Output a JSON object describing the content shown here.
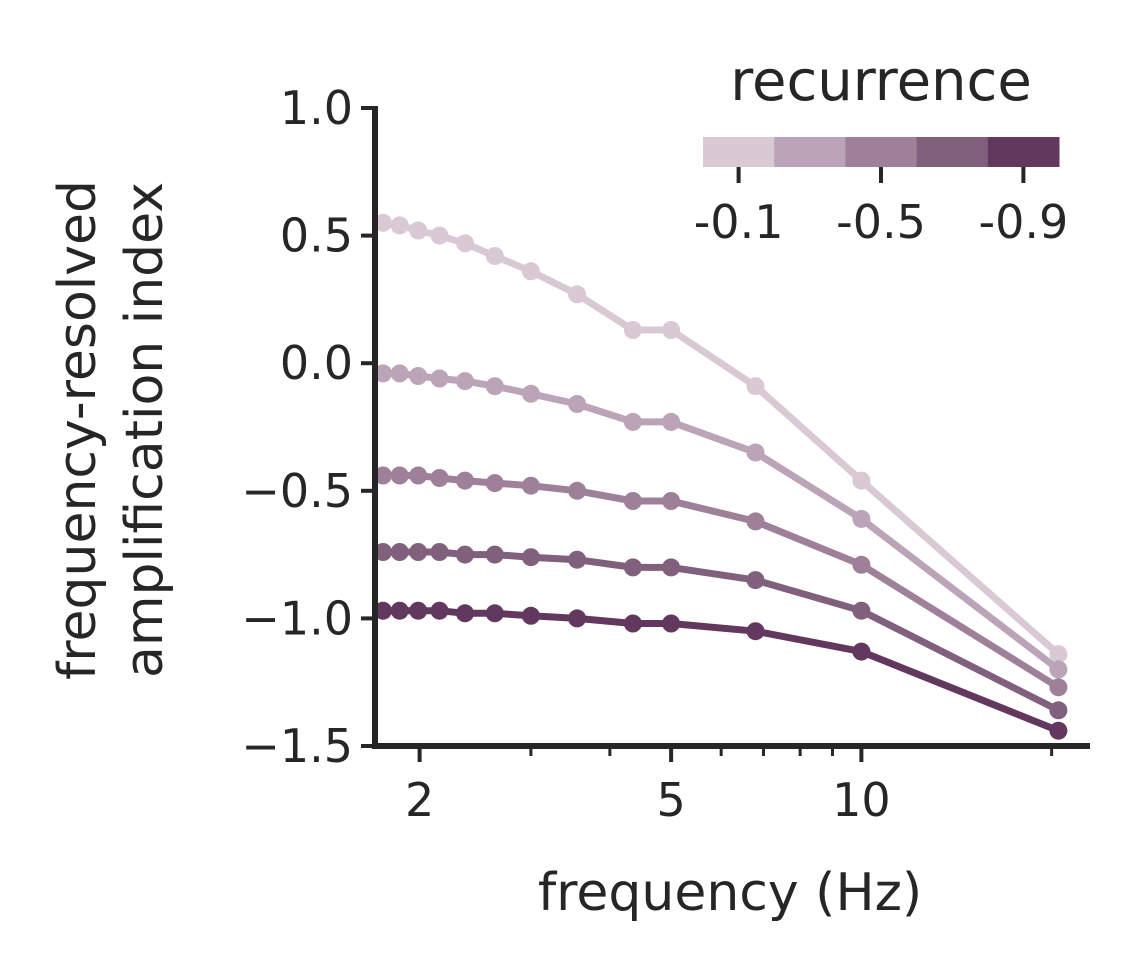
{
  "chart_data": {
    "type": "line",
    "title": "",
    "xlabel": "frequency (Hz)",
    "ylabel": [
      "frequency-resolved",
      "amplification index"
    ],
    "x_scale": "log",
    "xlim": [
      1.7,
      23
    ],
    "ylim": [
      -1.5,
      1.0
    ],
    "grid": false,
    "x_ticks": [
      2,
      5,
      10
    ],
    "x_tick_labels": [
      "2",
      "5",
      "10"
    ],
    "x_minor_ticks": [
      3,
      4,
      6,
      7,
      8,
      9,
      20
    ],
    "y_ticks": [
      1.0,
      0.5,
      0.0,
      -0.5,
      -1.0,
      -1.5
    ],
    "y_tick_labels": [
      "1.0",
      "0.5",
      "0.0",
      "−0.5",
      "−1.0",
      "−1.5"
    ],
    "x": [
      1.75,
      1.86,
      1.99,
      2.15,
      2.36,
      2.63,
      3.0,
      3.55,
      4.35,
      5.0,
      6.8,
      10.0,
      20.5
    ],
    "series": [
      {
        "color": "#d9c9d5",
        "values": [
          0.55,
          0.54,
          0.52,
          0.5,
          0.47,
          0.42,
          0.36,
          0.27,
          0.13,
          0.13,
          -0.09,
          -0.46,
          -1.14
        ]
      },
      {
        "color": "#bba4b8",
        "values": [
          -0.04,
          -0.04,
          -0.05,
          -0.06,
          -0.07,
          -0.09,
          -0.12,
          -0.16,
          -0.23,
          -0.23,
          -0.35,
          -0.61,
          -1.2
        ]
      },
      {
        "color": "#9e8199",
        "values": [
          -0.44,
          -0.44,
          -0.44,
          -0.45,
          -0.46,
          -0.47,
          -0.48,
          -0.5,
          -0.54,
          -0.54,
          -0.62,
          -0.79,
          -1.27
        ]
      },
      {
        "color": "#80607c",
        "values": [
          -0.74,
          -0.74,
          -0.74,
          -0.74,
          -0.75,
          -0.75,
          -0.76,
          -0.77,
          -0.8,
          -0.8,
          -0.85,
          -0.97,
          -1.36
        ]
      },
      {
        "color": "#63385e",
        "values": [
          -0.97,
          -0.97,
          -0.97,
          -0.97,
          -0.98,
          -0.98,
          -0.99,
          -1.0,
          -1.02,
          -1.02,
          -1.05,
          -1.13,
          -1.44
        ]
      }
    ],
    "legend": {
      "title": "recurrence",
      "placement": "top-right",
      "colors": [
        "#d9c9d5",
        "#bba4b8",
        "#9e8199",
        "#80607c",
        "#63385e"
      ],
      "tick_labels": [
        "-0.1",
        "-0.5",
        "-0.9"
      ]
    }
  }
}
